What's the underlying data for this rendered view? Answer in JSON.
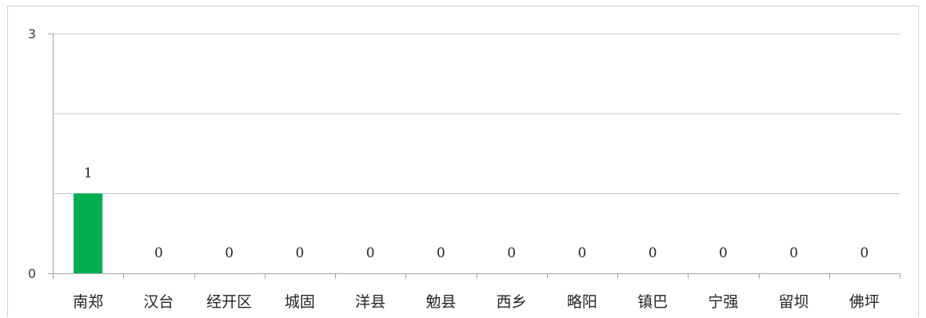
{
  "chart_data": {
    "type": "bar",
    "title": "",
    "xlabel": "",
    "ylabel": "",
    "categories": [
      "南郑",
      "汉台",
      "经开区",
      "城固",
      "洋县",
      "勉县",
      "西乡",
      "略阳",
      "镇巴",
      "宁强",
      "留坝",
      "佛坪"
    ],
    "values": [
      1,
      0,
      0,
      0,
      0,
      0,
      0,
      0,
      0,
      0,
      0,
      0
    ],
    "data_labels": [
      "1",
      "0",
      "0",
      "0",
      "0",
      "0",
      "0",
      "0",
      "0",
      "0",
      "0",
      "0"
    ],
    "ylim": [
      0,
      3
    ],
    "y_tick_labels": [
      {
        "value": 0,
        "label": "0"
      },
      {
        "value": 3,
        "label": "3"
      }
    ],
    "gridlines": [
      1,
      2,
      3
    ],
    "grid": true,
    "legend": "none",
    "bar_color": "#00b050",
    "grid_color": "#c8c8c8",
    "axis_color": "#a6a6a6"
  }
}
